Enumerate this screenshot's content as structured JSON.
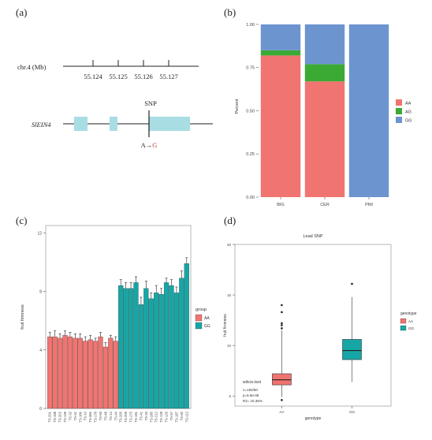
{
  "panel_a": {
    "label": "(a)",
    "chr_label": "chr.4 (Mb)",
    "ticks": [
      "55.124",
      "55.125",
      "55.126",
      "55.127"
    ],
    "snp_label": "SNP",
    "gene_label": "SlEIN4",
    "allele_ref": "A",
    "allele_arrow": "→",
    "allele_alt": "G",
    "colors": {
      "exon": "#a8dde3",
      "alt_allele": "#d62728"
    }
  },
  "chart_data": [
    {
      "panel": "b",
      "label": "(b)",
      "type": "bar",
      "stacked": true,
      "categories": [
        "BIG",
        "CER",
        "PIM"
      ],
      "series": [
        {
          "name": "AA",
          "color": "#f07470",
          "values": [
            0.82,
            0.67,
            0.0
          ]
        },
        {
          "name": "AG",
          "color": "#3aaa35",
          "values": [
            0.03,
            0.1,
            0.0
          ]
        },
        {
          "name": "GG",
          "color": "#6c94cf",
          "values": [
            0.15,
            0.23,
            1.0
          ]
        }
      ],
      "ylabel": "Percent",
      "yticks": [
        "0.00",
        "0.25",
        "0.50",
        "0.75",
        "1.00"
      ],
      "ylim": [
        0,
        1.05
      ],
      "legend_position": "right"
    },
    {
      "panel": "c",
      "label": "(c)",
      "type": "bar",
      "categories": [
        "TS-201",
        "TS-198",
        "TS-202",
        "TS-139",
        "TS-32",
        "TS-41",
        "TS-186",
        "TS-10",
        "TS-384",
        "TS-178",
        "TS-93",
        "TS-48",
        "TS-14",
        "TS-44",
        "TS-200",
        "TS-209",
        "TS-175",
        "TS-191",
        "TS-41",
        "TS-33",
        "TS-280",
        "TS-212",
        "TS-128",
        "TS-126",
        "TS-57",
        "TS-187",
        "TS-82",
        "TS-112"
      ],
      "groups": [
        "AA",
        "AA",
        "AA",
        "AA",
        "AA",
        "AA",
        "AA",
        "AA",
        "AA",
        "AA",
        "AA",
        "AA",
        "AA",
        "AA",
        "GG",
        "GG",
        "GG",
        "GG",
        "GG",
        "GG",
        "GG",
        "GG",
        "GG",
        "GG",
        "GG",
        "GG",
        "GG",
        "GG"
      ],
      "values": [
        4.9,
        4.9,
        4.8,
        5.0,
        4.9,
        4.8,
        4.8,
        4.6,
        4.7,
        4.6,
        4.9,
        4.2,
        4.8,
        4.6,
        8.4,
        8.2,
        8.2,
        8.6,
        7.1,
        8.2,
        7.5,
        7.9,
        7.8,
        8.6,
        8.4,
        7.9,
        8.9,
        9.9
      ],
      "errors": [
        0.3,
        0.4,
        0.3,
        0.3,
        0.3,
        0.3,
        0.3,
        0.3,
        0.3,
        0.2,
        0.3,
        0.3,
        0.2,
        0.3,
        0.4,
        0.4,
        0.4,
        0.4,
        0.5,
        0.5,
        0.4,
        0.5,
        0.4,
        0.3,
        0.4,
        0.4,
        0.5,
        0.4
      ],
      "ylabel": "fruit firmness",
      "yticks": [
        "0",
        "4",
        "8",
        "12"
      ],
      "ylim": [
        0,
        12.5
      ],
      "legend_title": "group",
      "legend": [
        {
          "name": "AA",
          "color": "#f07470"
        },
        {
          "name": "GG",
          "color": "#17a6a6"
        }
      ]
    },
    {
      "panel": "d",
      "label": "(d)",
      "type": "box",
      "title": "Lead SNP",
      "categories": [
        "AA",
        "GG"
      ],
      "boxes": [
        {
          "name": "AA",
          "color": "#f07470",
          "min": 4.9,
          "q1": 6.1,
          "median": 6.6,
          "q3": 7.2,
          "max": 11.5,
          "outliers": [
            4.6,
            11.7,
            12.0,
            12.2,
            13.3,
            14.0
          ]
        },
        {
          "name": "GG",
          "color": "#17a6a6",
          "min": 6.4,
          "q1": 8.6,
          "median": 9.5,
          "q3": 10.6,
          "max": 14.8,
          "outliers": [
            16.1
          ]
        }
      ],
      "xlabel": "genotype",
      "ylabel": "fruit firmness",
      "yticks": [
        "5",
        "10",
        "15",
        "20"
      ],
      "ylim": [
        4,
        20
      ],
      "legend_title": "genotype",
      "legend": [
        {
          "name": "AA",
          "color": "#f07470"
        },
        {
          "name": "GG",
          "color": "#17a6a6"
        }
      ],
      "annotation": {
        "test": "wilcox.test",
        "n": "n=192/60",
        "p": "p=6.9e-08",
        "r2": "R2= 15.36%"
      }
    }
  ]
}
